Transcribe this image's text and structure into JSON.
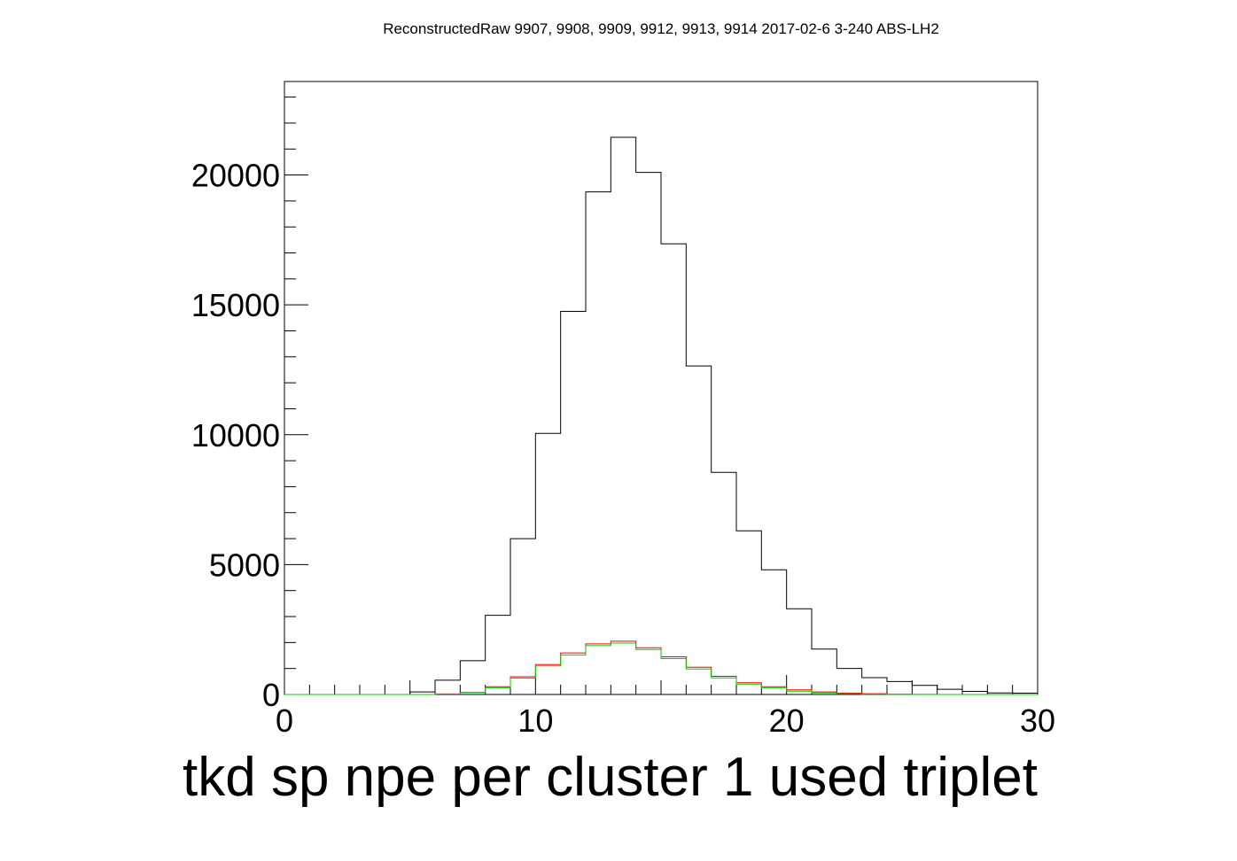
{
  "chart_data": {
    "type": "histogram",
    "title": "ReconstructedRaw 9907, 9908, 9909, 9912, 9913, 9914 2017-02-6 3-240 ABS-LH2",
    "xlabel": "tkd sp npe per cluster 1 used triplet",
    "ylabel": "",
    "xlim": [
      0,
      30
    ],
    "ylim": [
      0,
      23600
    ],
    "bin_width": 1,
    "x_bin_edges_start": 0,
    "x_ticks": [
      0,
      10,
      20,
      30
    ],
    "x_tick_labels": [
      "0",
      "10",
      "20",
      "30"
    ],
    "y_ticks": [
      0,
      5000,
      10000,
      15000,
      20000
    ],
    "y_tick_labels": [
      "0",
      "5000",
      "10000",
      "15000",
      "20000"
    ],
    "grid": false,
    "legend": "none",
    "series": [
      {
        "color": "#000000",
        "values": [
          0,
          0,
          0,
          0,
          0,
          100,
          550,
          1300,
          3050,
          6000,
          10050,
          14750,
          19350,
          21450,
          20100,
          17350,
          12650,
          8550,
          6300,
          4800,
          3300,
          1750,
          1000,
          650,
          500,
          350,
          200,
          120,
          60,
          50
        ]
      },
      {
        "color": "#ff0000",
        "values": [
          0,
          0,
          0,
          0,
          0,
          0,
          20,
          80,
          300,
          680,
          1150,
          1600,
          1950,
          2050,
          1800,
          1450,
          1050,
          700,
          450,
          300,
          180,
          100,
          50,
          30,
          10,
          5,
          0,
          0,
          0,
          0
        ]
      },
      {
        "color": "#00cc00",
        "values": [
          0,
          0,
          0,
          0,
          0,
          0,
          15,
          70,
          260,
          630,
          1100,
          1520,
          1880,
          1980,
          1730,
          1380,
          980,
          640,
          400,
          250,
          130,
          60,
          25,
          10,
          5,
          0,
          0,
          0,
          0,
          0
        ]
      }
    ]
  }
}
